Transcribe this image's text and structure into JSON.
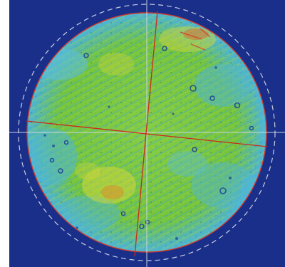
{
  "image": {
    "kind": "circular surface map",
    "colors": {
      "background": "#1a2f8a",
      "outer_ring": "#c8cde0",
      "fit_circle": "#d23a2a",
      "crosshair": "#d9dde8",
      "axis_lines": "#cc2a1a",
      "map_green": "#78c83a",
      "map_cyan": "#4fb6d8",
      "map_blue": "#1d5fa6",
      "map_yellow": "#d8d83a",
      "map_orange": "#e08a2a"
    }
  }
}
